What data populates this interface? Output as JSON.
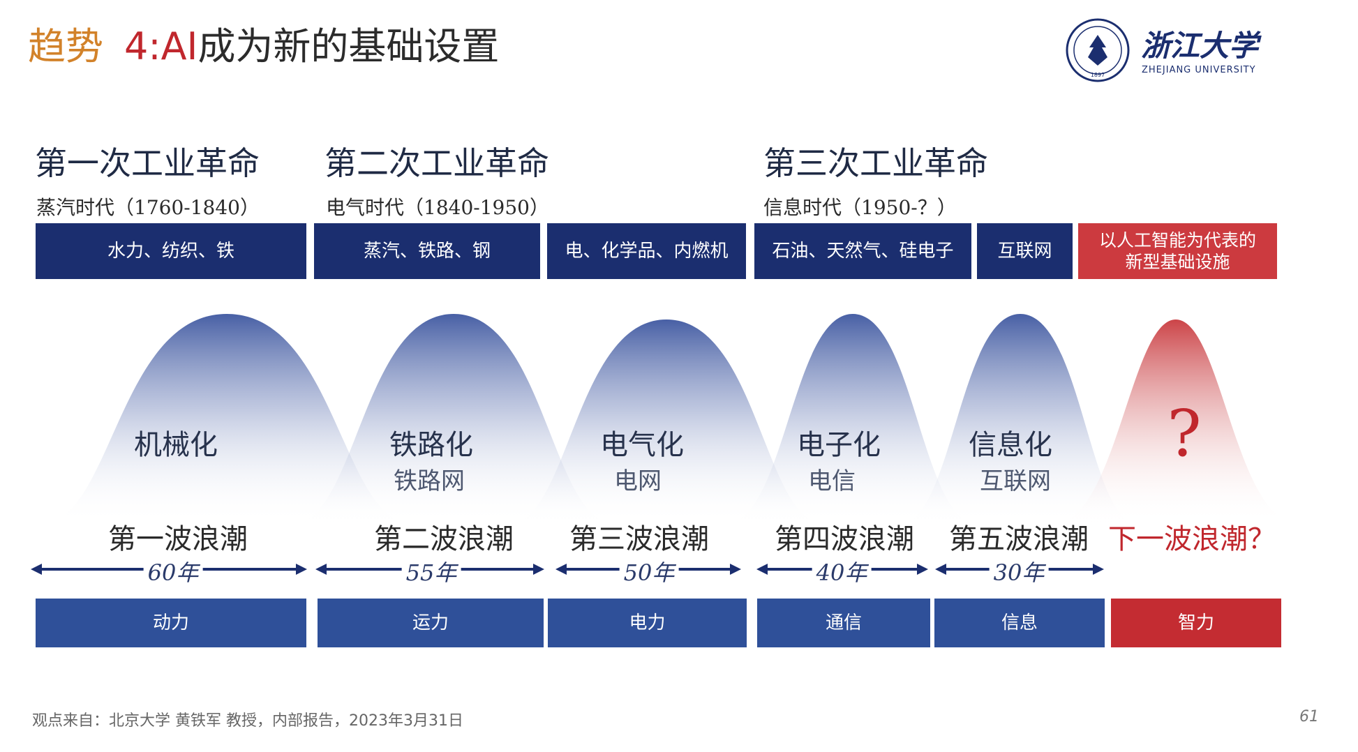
{
  "title": {
    "part1": "趋势",
    "part2": "4:",
    "part3": "AI",
    "part4": "成为新的基础设置"
  },
  "logo": {
    "name_cn": "浙江大学",
    "name_en": "ZHEJIANG UNIVERSITY",
    "seal_year": "1897"
  },
  "revolutions": [
    {
      "title": "第一次工业革命",
      "era": "蒸汽时代（1760-1840）"
    },
    {
      "title": "第二次工业革命",
      "era": "电气时代（1840-1950）"
    },
    {
      "title": "第三次工业革命",
      "era": "信息时代（1950-？）"
    }
  ],
  "top_boxes": [
    {
      "label": "水力、纺织、铁"
    },
    {
      "label": "蒸汽、铁路、钢"
    },
    {
      "label": "电、化学品、内燃机"
    },
    {
      "label": "石油、天然气、硅电子"
    },
    {
      "label": "互联网"
    },
    {
      "label_line1": "以人工智能为代表的",
      "label_line2": "新型基础设施"
    }
  ],
  "waves": [
    {
      "name": "机械化",
      "sub": "",
      "label": "第一波浪潮",
      "duration": "60年"
    },
    {
      "name": "铁路化",
      "sub": "铁路网",
      "label": "第二波浪潮",
      "duration": "55年"
    },
    {
      "name": "电气化",
      "sub": "电网",
      "label": "第三波浪潮",
      "duration": "50年"
    },
    {
      "name": "电子化",
      "sub": "电信",
      "label": "第四波浪潮",
      "duration": "40年"
    },
    {
      "name": "信息化",
      "sub": "互联网",
      "label": "第五波浪潮",
      "duration": "30年"
    },
    {
      "name": "?",
      "sub": "",
      "label": "下一波浪潮？",
      "duration": ""
    }
  ],
  "bottom_boxes": [
    {
      "label": "动力"
    },
    {
      "label": "运力"
    },
    {
      "label": "电力"
    },
    {
      "label": "通信"
    },
    {
      "label": "信息"
    },
    {
      "label": "智力"
    }
  ],
  "footer": {
    "source": "观点来自：北京大学  黄铁军  教授，内部报告，2023年3月31日",
    "page": "61"
  },
  "colors": {
    "navy": "#1b2e6f",
    "blue": "#2f5099",
    "red": "#c42c32",
    "title_orange": "#d2822a",
    "title_red": "#c0272d"
  }
}
